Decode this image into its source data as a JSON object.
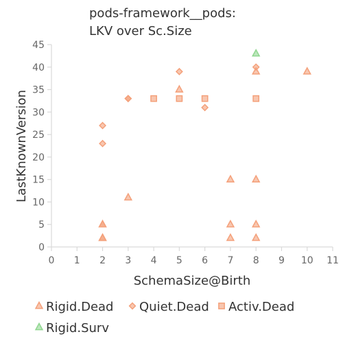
{
  "chart_data": {
    "type": "scatter",
    "title_lines": [
      "pods-framework__pods:",
      "LKV over Sc.Size"
    ],
    "xlabel": "SchemaSize@Birth",
    "ylabel": "LastKnownVersion",
    "xlim": [
      0,
      11
    ],
    "ylim": [
      0,
      45
    ],
    "x_ticks": [
      "0",
      "1",
      "2",
      "3",
      "4",
      "5",
      "6",
      "7",
      "8",
      "9",
      "10",
      "11"
    ],
    "y_ticks": [
      "0",
      "5",
      "10",
      "15",
      "20",
      "25",
      "30",
      "35",
      "40",
      "45"
    ],
    "grid": false,
    "legend_position": "bottom",
    "series": [
      {
        "name": "Rigid.Dead",
        "marker": "triangle",
        "color": "#f4a07a",
        "points": [
          [
            2,
            2
          ],
          [
            2,
            2
          ],
          [
            2,
            5
          ],
          [
            2,
            5
          ],
          [
            3,
            11
          ],
          [
            5,
            35
          ],
          [
            7,
            2
          ],
          [
            7,
            5
          ],
          [
            7,
            15
          ],
          [
            8,
            2
          ],
          [
            8,
            5
          ],
          [
            8,
            15
          ],
          [
            8,
            39
          ],
          [
            10,
            39
          ]
        ]
      },
      {
        "name": "Quiet.Dead",
        "marker": "diamond",
        "color": "#f4a07a",
        "points": [
          [
            2,
            23
          ],
          [
            2,
            27
          ],
          [
            3,
            33
          ],
          [
            3,
            33
          ],
          [
            5,
            39
          ],
          [
            6,
            31
          ],
          [
            8,
            40
          ]
        ]
      },
      {
        "name": "Activ.Dead",
        "marker": "square",
        "color": "#f4a07a",
        "points": [
          [
            4,
            33
          ],
          [
            5,
            33
          ],
          [
            6,
            33
          ],
          [
            8,
            33
          ]
        ]
      },
      {
        "name": "Rigid.Surv",
        "marker": "triangle",
        "color": "#8fd68f",
        "points": [
          [
            8,
            43
          ]
        ]
      }
    ]
  }
}
